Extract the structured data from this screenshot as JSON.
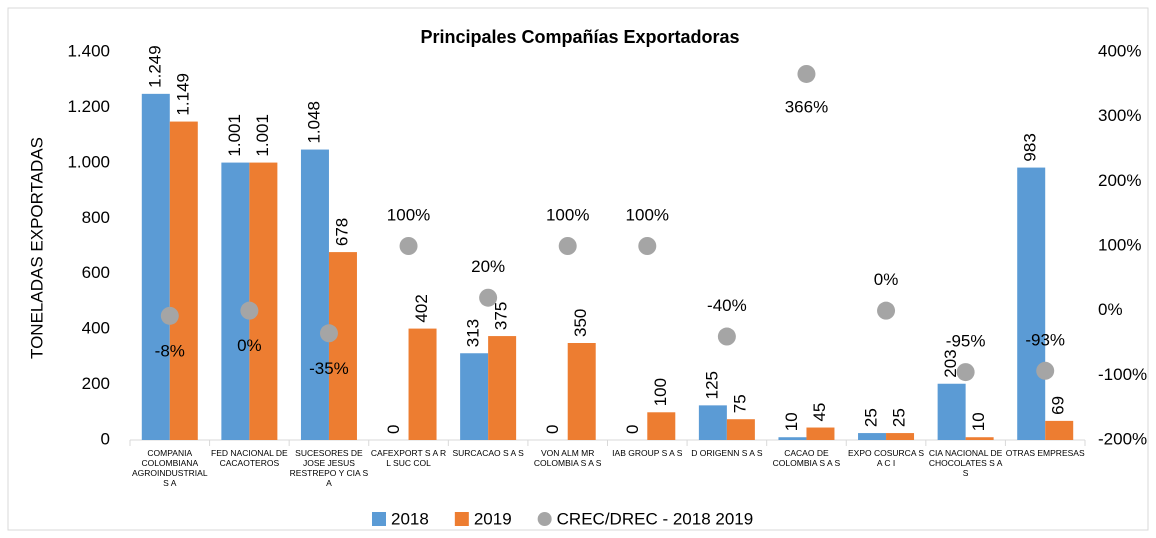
{
  "chart_data": {
    "type": "bar",
    "title": "Principales Compañías Exportadoras",
    "y_label": "TONELADAS EXPORTADAS",
    "categories": [
      "COMPANIA COLOMBIANA AGROINDUSTRIAL S A",
      "FED NACIONAL DE CACAOTEROS",
      "SUCESORES DE JOSE JESUS RESTREPO Y CIA S A",
      "CAFEXPORT S A R L SUC COL",
      "SURCACAO S A S",
      "VON ALM MR COLOMBIA S A S",
      "IAB GROUP S A S",
      "D ORIGENN S A S",
      "CACAO DE COLOMBIA S A S",
      "EXPO COSURCA S A C I",
      "CIA NACIONAL DE CHOCOLATES S A S",
      "OTRAS EMPRESAS"
    ],
    "series": [
      {
        "name": "2018",
        "color": "#5b9bd5",
        "values": [
          1249,
          1001,
          1048,
          0,
          313,
          0,
          0,
          125,
          10,
          25,
          203,
          983
        ],
        "value_labels": [
          "1.249",
          "1.001",
          "1.048",
          "0",
          "313",
          "0",
          "0",
          "125",
          "10",
          "25",
          "203",
          "983"
        ]
      },
      {
        "name": "2019",
        "color": "#ed7d31",
        "values": [
          1149,
          1001,
          678,
          402,
          375,
          350,
          100,
          75,
          45,
          25,
          10,
          69
        ],
        "value_labels": [
          "1.149",
          "1.001",
          "678",
          "402",
          "375",
          "350",
          "100",
          "75",
          "45",
          "25",
          "10",
          "69"
        ]
      },
      {
        "name": "CREC/DREC - 2018 2019",
        "color": "#a5a5a5",
        "type": "scatter",
        "axis": "y2",
        "values": [
          -8,
          0,
          -35,
          100,
          20,
          100,
          100,
          -40,
          366,
          0,
          -95,
          -93
        ],
        "value_labels": [
          "-8%",
          "0%",
          "-35%",
          "100%",
          "20%",
          "100%",
          "100%",
          "-40%",
          "366%",
          "0%",
          "-95%",
          "-93%"
        ]
      }
    ],
    "ylim": [
      0,
      1400
    ],
    "yticks": [
      0,
      200,
      400,
      600,
      800,
      {
        "value": 1000,
        "label": "1.000"
      },
      {
        "value": 1200,
        "label": "1.200"
      },
      {
        "value": 1400,
        "label": "1.400"
      }
    ],
    "y2lim": [
      -200,
      400
    ],
    "y2ticks": [
      {
        "value": -200,
        "label": "-200%"
      },
      {
        "value": -100,
        "label": "-100%"
      },
      {
        "value": 0,
        "label": "0%"
      },
      {
        "value": 100,
        "label": "100%"
      },
      {
        "value": 200,
        "label": "200%"
      },
      {
        "value": 300,
        "label": "300%"
      },
      {
        "value": 400,
        "label": "400%"
      }
    ],
    "legend": "bottom"
  }
}
